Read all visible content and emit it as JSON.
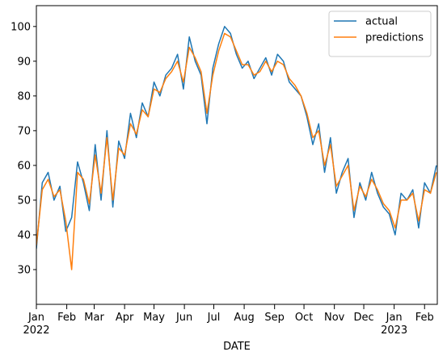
{
  "chart_data": {
    "type": "line",
    "x_label": "DATE",
    "x": [
      "2022-01-01",
      "2022-01-07",
      "2022-01-13",
      "2022-01-19",
      "2022-01-25",
      "2022-01-31",
      "2022-02-06",
      "2022-02-12",
      "2022-02-18",
      "2022-02-24",
      "2022-03-02",
      "2022-03-08",
      "2022-03-14",
      "2022-03-20",
      "2022-03-26",
      "2022-04-01",
      "2022-04-07",
      "2022-04-13",
      "2022-04-19",
      "2022-04-25",
      "2022-05-01",
      "2022-05-07",
      "2022-05-13",
      "2022-05-19",
      "2022-05-25",
      "2022-05-31",
      "2022-06-06",
      "2022-06-12",
      "2022-06-18",
      "2022-06-24",
      "2022-06-30",
      "2022-07-06",
      "2022-07-12",
      "2022-07-18",
      "2022-07-24",
      "2022-07-30",
      "2022-08-05",
      "2022-08-11",
      "2022-08-17",
      "2022-08-23",
      "2022-08-29",
      "2022-09-04",
      "2022-09-10",
      "2022-09-16",
      "2022-09-22",
      "2022-09-28",
      "2022-10-04",
      "2022-10-10",
      "2022-10-16",
      "2022-10-22",
      "2022-10-28",
      "2022-11-03",
      "2022-11-09",
      "2022-11-15",
      "2022-11-21",
      "2022-11-27",
      "2022-12-03",
      "2022-12-09",
      "2022-12-15",
      "2022-12-21",
      "2022-12-27",
      "2023-01-02",
      "2023-01-08",
      "2023-01-14",
      "2023-01-20",
      "2023-01-26",
      "2023-02-01",
      "2023-02-07",
      "2023-02-13"
    ],
    "series": [
      {
        "name": "actual",
        "color": "#1f77b4",
        "values": [
          36,
          55,
          58,
          50,
          54,
          41,
          45,
          61,
          55,
          47,
          66,
          50,
          70,
          48,
          67,
          62,
          75,
          68,
          78,
          74,
          84,
          80,
          86,
          88,
          92,
          82,
          97,
          90,
          86,
          72,
          88,
          95,
          100,
          98,
          92,
          88,
          90,
          85,
          88,
          91,
          86,
          92,
          90,
          84,
          82,
          80,
          74,
          66,
          72,
          58,
          68,
          52,
          58,
          62,
          45,
          55,
          50,
          58,
          52,
          48,
          46,
          40,
          52,
          50,
          53,
          42,
          55,
          52,
          60
        ]
      },
      {
        "name": "predictions",
        "color": "#ff7f0e",
        "values": [
          37,
          53,
          56,
          51,
          53,
          44,
          30,
          58,
          56,
          49,
          63,
          52,
          68,
          50,
          65,
          63,
          72,
          69,
          76,
          74,
          82,
          81,
          85,
          87,
          90,
          84,
          94,
          91,
          87,
          75,
          86,
          93,
          98,
          97,
          93,
          89,
          89,
          86,
          87,
          90,
          87,
          90,
          89,
          85,
          83,
          80,
          75,
          68,
          70,
          60,
          66,
          54,
          57,
          60,
          47,
          54,
          51,
          56,
          53,
          49,
          47,
          42,
          50,
          50,
          52,
          44,
          53,
          52,
          58
        ]
      }
    ],
    "xlim": [
      "2022-01-01",
      "2023-02-14"
    ],
    "xticks": [
      {
        "value": "2022-01-01",
        "label": "Jan\n2022"
      },
      {
        "value": "2022-02-01",
        "label": "Feb"
      },
      {
        "value": "2022-03-01",
        "label": "Mar"
      },
      {
        "value": "2022-04-01",
        "label": "Apr"
      },
      {
        "value": "2022-05-01",
        "label": "May"
      },
      {
        "value": "2022-06-01",
        "label": "Jun"
      },
      {
        "value": "2022-07-01",
        "label": "Jul"
      },
      {
        "value": "2022-08-01",
        "label": "Aug"
      },
      {
        "value": "2022-09-01",
        "label": "Sep"
      },
      {
        "value": "2022-10-01",
        "label": "Oct"
      },
      {
        "value": "2022-11-01",
        "label": "Nov"
      },
      {
        "value": "2022-12-01",
        "label": "Dec"
      },
      {
        "value": "2023-01-01",
        "label": "Jan\n2023"
      },
      {
        "value": "2023-02-01",
        "label": "Feb"
      }
    ],
    "ylim": [
      20,
      106
    ],
    "yticks": [
      30,
      40,
      50,
      60,
      70,
      80,
      90,
      100
    ],
    "legend": "upper right"
  }
}
